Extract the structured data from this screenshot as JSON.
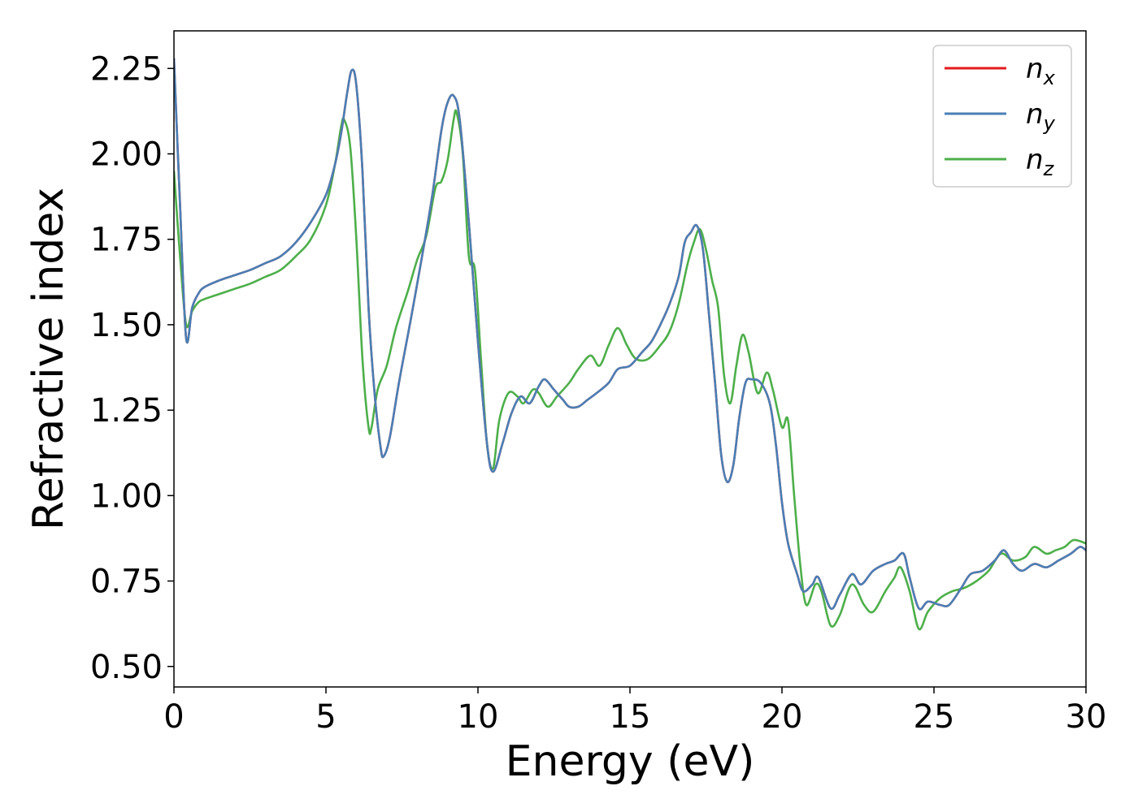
{
  "chart_data": {
    "type": "line",
    "title": "",
    "xlabel": "Energy (eV)",
    "ylabel": "Refractive index",
    "xlim": [
      0,
      30
    ],
    "ylim": [
      0.44,
      2.36
    ],
    "xticks": [
      0,
      5,
      10,
      15,
      20,
      25,
      30
    ],
    "xtick_labels": [
      "0",
      "5",
      "10",
      "15",
      "20",
      "25",
      "30"
    ],
    "yticks": [
      0.5,
      0.75,
      1.0,
      1.25,
      1.5,
      1.75,
      2.0,
      2.25
    ],
    "ytick_labels": [
      "0.50",
      "0.75",
      "1.00",
      "1.25",
      "1.50",
      "1.75",
      "2.00",
      "2.25"
    ],
    "grid": false,
    "legend_position": "top-right",
    "series": [
      {
        "name": "n_x",
        "legend_base": "n",
        "legend_sub": "x",
        "color": "#e41a1c",
        "points": [
          [
            0,
            2.28
          ],
          [
            0.2,
            1.85
          ],
          [
            0.4,
            1.46
          ],
          [
            0.6,
            1.55
          ],
          [
            0.8,
            1.59
          ],
          [
            1.0,
            1.61
          ],
          [
            1.5,
            1.63
          ],
          [
            2,
            1.645
          ],
          [
            2.5,
            1.66
          ],
          [
            3,
            1.68
          ],
          [
            3.5,
            1.7
          ],
          [
            4,
            1.74
          ],
          [
            4.5,
            1.8
          ],
          [
            5,
            1.88
          ],
          [
            5.3,
            1.97
          ],
          [
            5.5,
            2.06
          ],
          [
            5.7,
            2.18
          ],
          [
            5.85,
            2.245
          ],
          [
            6.0,
            2.2
          ],
          [
            6.2,
            1.95
          ],
          [
            6.4,
            1.55
          ],
          [
            6.6,
            1.3
          ],
          [
            6.8,
            1.14
          ],
          [
            6.9,
            1.115
          ],
          [
            7.1,
            1.17
          ],
          [
            7.4,
            1.33
          ],
          [
            7.8,
            1.52
          ],
          [
            8.2,
            1.72
          ],
          [
            8.5,
            1.88
          ],
          [
            8.8,
            2.07
          ],
          [
            9.0,
            2.15
          ],
          [
            9.2,
            2.17
          ],
          [
            9.4,
            2.1
          ],
          [
            9.7,
            1.8
          ],
          [
            10.0,
            1.45
          ],
          [
            10.3,
            1.15
          ],
          [
            10.5,
            1.07
          ],
          [
            10.8,
            1.15
          ],
          [
            11.1,
            1.24
          ],
          [
            11.4,
            1.29
          ],
          [
            11.7,
            1.27
          ],
          [
            12.0,
            1.32
          ],
          [
            12.2,
            1.34
          ],
          [
            12.5,
            1.31
          ],
          [
            12.8,
            1.28
          ],
          [
            13.0,
            1.26
          ],
          [
            13.3,
            1.26
          ],
          [
            13.6,
            1.28
          ],
          [
            13.9,
            1.3
          ],
          [
            14.3,
            1.33
          ],
          [
            14.6,
            1.37
          ],
          [
            15.0,
            1.38
          ],
          [
            15.4,
            1.42
          ],
          [
            15.7,
            1.45
          ],
          [
            16.0,
            1.5
          ],
          [
            16.3,
            1.56
          ],
          [
            16.6,
            1.64
          ],
          [
            16.8,
            1.74
          ],
          [
            17.0,
            1.77
          ],
          [
            17.2,
            1.79
          ],
          [
            17.4,
            1.72
          ],
          [
            17.6,
            1.53
          ],
          [
            17.8,
            1.33
          ],
          [
            18.0,
            1.12
          ],
          [
            18.2,
            1.04
          ],
          [
            18.4,
            1.09
          ],
          [
            18.6,
            1.23
          ],
          [
            18.8,
            1.33
          ],
          [
            19.0,
            1.34
          ],
          [
            19.3,
            1.33
          ],
          [
            19.6,
            1.27
          ],
          [
            19.8,
            1.15
          ],
          [
            20.0,
            0.98
          ],
          [
            20.2,
            0.86
          ],
          [
            20.5,
            0.77
          ],
          [
            20.7,
            0.72
          ],
          [
            21.0,
            0.74
          ],
          [
            21.2,
            0.76
          ],
          [
            21.6,
            0.67
          ],
          [
            21.9,
            0.71
          ],
          [
            22.3,
            0.77
          ],
          [
            22.6,
            0.74
          ],
          [
            23.0,
            0.78
          ],
          [
            23.4,
            0.8
          ],
          [
            23.7,
            0.81
          ],
          [
            24.0,
            0.83
          ],
          [
            24.2,
            0.76
          ],
          [
            24.5,
            0.67
          ],
          [
            24.8,
            0.69
          ],
          [
            25.2,
            0.68
          ],
          [
            25.5,
            0.68
          ],
          [
            25.9,
            0.73
          ],
          [
            26.2,
            0.77
          ],
          [
            26.6,
            0.78
          ],
          [
            27.0,
            0.81
          ],
          [
            27.3,
            0.84
          ],
          [
            27.6,
            0.8
          ],
          [
            27.9,
            0.78
          ],
          [
            28.3,
            0.8
          ],
          [
            28.7,
            0.79
          ],
          [
            29.1,
            0.81
          ],
          [
            29.5,
            0.83
          ],
          [
            29.8,
            0.85
          ],
          [
            30.0,
            0.84
          ]
        ]
      },
      {
        "name": "n_y",
        "legend_base": "n",
        "legend_sub": "y",
        "color": "#4a7fb5",
        "points": [
          [
            0,
            2.28
          ],
          [
            0.2,
            1.85
          ],
          [
            0.4,
            1.46
          ],
          [
            0.6,
            1.55
          ],
          [
            0.8,
            1.59
          ],
          [
            1.0,
            1.61
          ],
          [
            1.5,
            1.63
          ],
          [
            2,
            1.645
          ],
          [
            2.5,
            1.66
          ],
          [
            3,
            1.68
          ],
          [
            3.5,
            1.7
          ],
          [
            4,
            1.74
          ],
          [
            4.5,
            1.8
          ],
          [
            5,
            1.88
          ],
          [
            5.3,
            1.97
          ],
          [
            5.5,
            2.06
          ],
          [
            5.7,
            2.18
          ],
          [
            5.85,
            2.245
          ],
          [
            6.0,
            2.2
          ],
          [
            6.2,
            1.95
          ],
          [
            6.4,
            1.55
          ],
          [
            6.6,
            1.3
          ],
          [
            6.8,
            1.14
          ],
          [
            6.9,
            1.115
          ],
          [
            7.1,
            1.17
          ],
          [
            7.4,
            1.33
          ],
          [
            7.8,
            1.52
          ],
          [
            8.2,
            1.72
          ],
          [
            8.5,
            1.88
          ],
          [
            8.8,
            2.07
          ],
          [
            9.0,
            2.15
          ],
          [
            9.2,
            2.17
          ],
          [
            9.4,
            2.1
          ],
          [
            9.7,
            1.8
          ],
          [
            10.0,
            1.45
          ],
          [
            10.3,
            1.15
          ],
          [
            10.5,
            1.07
          ],
          [
            10.8,
            1.15
          ],
          [
            11.1,
            1.24
          ],
          [
            11.4,
            1.29
          ],
          [
            11.7,
            1.27
          ],
          [
            12.0,
            1.32
          ],
          [
            12.2,
            1.34
          ],
          [
            12.5,
            1.31
          ],
          [
            12.8,
            1.28
          ],
          [
            13.0,
            1.26
          ],
          [
            13.3,
            1.26
          ],
          [
            13.6,
            1.28
          ],
          [
            13.9,
            1.3
          ],
          [
            14.3,
            1.33
          ],
          [
            14.6,
            1.37
          ],
          [
            15.0,
            1.38
          ],
          [
            15.4,
            1.42
          ],
          [
            15.7,
            1.45
          ],
          [
            16.0,
            1.5
          ],
          [
            16.3,
            1.56
          ],
          [
            16.6,
            1.64
          ],
          [
            16.8,
            1.74
          ],
          [
            17.0,
            1.77
          ],
          [
            17.2,
            1.79
          ],
          [
            17.4,
            1.72
          ],
          [
            17.6,
            1.53
          ],
          [
            17.8,
            1.33
          ],
          [
            18.0,
            1.12
          ],
          [
            18.2,
            1.04
          ],
          [
            18.4,
            1.09
          ],
          [
            18.6,
            1.23
          ],
          [
            18.8,
            1.33
          ],
          [
            19.0,
            1.34
          ],
          [
            19.3,
            1.33
          ],
          [
            19.6,
            1.27
          ],
          [
            19.8,
            1.15
          ],
          [
            20.0,
            0.98
          ],
          [
            20.2,
            0.86
          ],
          [
            20.5,
            0.77
          ],
          [
            20.7,
            0.72
          ],
          [
            21.0,
            0.74
          ],
          [
            21.2,
            0.76
          ],
          [
            21.6,
            0.67
          ],
          [
            21.9,
            0.71
          ],
          [
            22.3,
            0.77
          ],
          [
            22.6,
            0.74
          ],
          [
            23.0,
            0.78
          ],
          [
            23.4,
            0.8
          ],
          [
            23.7,
            0.81
          ],
          [
            24.0,
            0.83
          ],
          [
            24.2,
            0.76
          ],
          [
            24.5,
            0.67
          ],
          [
            24.8,
            0.69
          ],
          [
            25.2,
            0.68
          ],
          [
            25.5,
            0.68
          ],
          [
            25.9,
            0.73
          ],
          [
            26.2,
            0.77
          ],
          [
            26.6,
            0.78
          ],
          [
            27.0,
            0.81
          ],
          [
            27.3,
            0.84
          ],
          [
            27.6,
            0.8
          ],
          [
            27.9,
            0.78
          ],
          [
            28.3,
            0.8
          ],
          [
            28.7,
            0.79
          ],
          [
            29.1,
            0.81
          ],
          [
            29.5,
            0.83
          ],
          [
            29.8,
            0.85
          ],
          [
            30.0,
            0.84
          ]
        ]
      },
      {
        "name": "n_z",
        "legend_base": "n",
        "legend_sub": "z",
        "color": "#4daf4a",
        "points": [
          [
            0,
            1.95
          ],
          [
            0.2,
            1.7
          ],
          [
            0.4,
            1.5
          ],
          [
            0.6,
            1.54
          ],
          [
            0.8,
            1.565
          ],
          [
            1.0,
            1.575
          ],
          [
            1.5,
            1.59
          ],
          [
            2,
            1.605
          ],
          [
            2.5,
            1.62
          ],
          [
            3,
            1.64
          ],
          [
            3.5,
            1.66
          ],
          [
            4,
            1.7
          ],
          [
            4.5,
            1.75
          ],
          [
            5,
            1.85
          ],
          [
            5.3,
            1.97
          ],
          [
            5.5,
            2.08
          ],
          [
            5.6,
            2.1
          ],
          [
            5.8,
            2.02
          ],
          [
            6.0,
            1.75
          ],
          [
            6.2,
            1.4
          ],
          [
            6.4,
            1.2
          ],
          [
            6.5,
            1.2
          ],
          [
            6.7,
            1.31
          ],
          [
            7.0,
            1.38
          ],
          [
            7.3,
            1.49
          ],
          [
            7.7,
            1.6
          ],
          [
            8.0,
            1.69
          ],
          [
            8.3,
            1.76
          ],
          [
            8.6,
            1.9
          ],
          [
            8.8,
            1.92
          ],
          [
            9.0,
            1.98
          ],
          [
            9.2,
            2.1
          ],
          [
            9.3,
            2.12
          ],
          [
            9.5,
            2.0
          ],
          [
            9.7,
            1.7
          ],
          [
            9.9,
            1.66
          ],
          [
            10.1,
            1.4
          ],
          [
            10.3,
            1.15
          ],
          [
            10.5,
            1.08
          ],
          [
            10.7,
            1.22
          ],
          [
            11.0,
            1.3
          ],
          [
            11.3,
            1.29
          ],
          [
            11.5,
            1.27
          ],
          [
            11.8,
            1.31
          ],
          [
            12.0,
            1.3
          ],
          [
            12.3,
            1.26
          ],
          [
            12.6,
            1.29
          ],
          [
            13.0,
            1.33
          ],
          [
            13.3,
            1.37
          ],
          [
            13.7,
            1.41
          ],
          [
            14.0,
            1.38
          ],
          [
            14.3,
            1.44
          ],
          [
            14.6,
            1.49
          ],
          [
            14.9,
            1.44
          ],
          [
            15.2,
            1.4
          ],
          [
            15.6,
            1.4
          ],
          [
            16.0,
            1.44
          ],
          [
            16.3,
            1.48
          ],
          [
            16.6,
            1.56
          ],
          [
            16.9,
            1.68
          ],
          [
            17.1,
            1.74
          ],
          [
            17.3,
            1.78
          ],
          [
            17.5,
            1.72
          ],
          [
            17.7,
            1.63
          ],
          [
            17.9,
            1.55
          ],
          [
            18.1,
            1.35
          ],
          [
            18.3,
            1.27
          ],
          [
            18.5,
            1.38
          ],
          [
            18.7,
            1.47
          ],
          [
            18.9,
            1.42
          ],
          [
            19.2,
            1.3
          ],
          [
            19.5,
            1.36
          ],
          [
            19.7,
            1.31
          ],
          [
            20.0,
            1.2
          ],
          [
            20.2,
            1.22
          ],
          [
            20.4,
            1.0
          ],
          [
            20.6,
            0.8
          ],
          [
            20.8,
            0.68
          ],
          [
            21.1,
            0.74
          ],
          [
            21.3,
            0.72
          ],
          [
            21.6,
            0.62
          ],
          [
            21.9,
            0.65
          ],
          [
            22.3,
            0.74
          ],
          [
            22.7,
            0.68
          ],
          [
            23.0,
            0.66
          ],
          [
            23.4,
            0.72
          ],
          [
            23.7,
            0.76
          ],
          [
            23.9,
            0.79
          ],
          [
            24.2,
            0.72
          ],
          [
            24.5,
            0.61
          ],
          [
            24.8,
            0.66
          ],
          [
            25.2,
            0.7
          ],
          [
            25.6,
            0.72
          ],
          [
            26.0,
            0.73
          ],
          [
            26.4,
            0.75
          ],
          [
            26.8,
            0.78
          ],
          [
            27.2,
            0.83
          ],
          [
            27.6,
            0.81
          ],
          [
            28.0,
            0.82
          ],
          [
            28.3,
            0.85
          ],
          [
            28.7,
            0.83
          ],
          [
            29.0,
            0.84
          ],
          [
            29.3,
            0.85
          ],
          [
            29.6,
            0.87
          ],
          [
            30.0,
            0.86
          ]
        ]
      }
    ]
  }
}
